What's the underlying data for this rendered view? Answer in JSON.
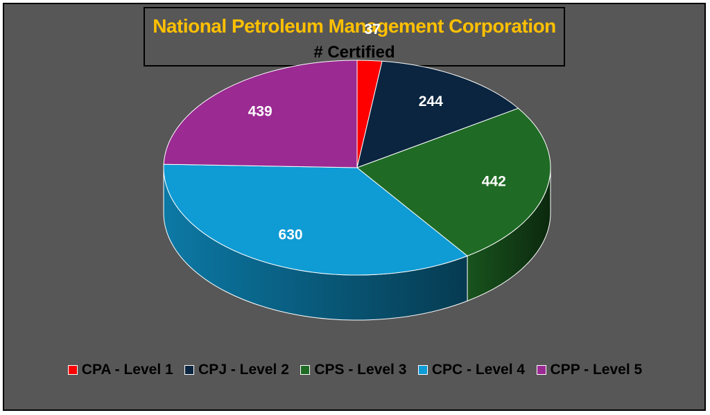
{
  "chart_data": {
    "type": "pie",
    "title": "National Petroleum Management Corporation",
    "subtitle": "# Certified",
    "categories": [
      "CPA - Level 1",
      "CPJ - Level 2",
      "CPS - Level 3",
      "CPC - Level 4",
      "CPP - Level 5"
    ],
    "values": [
      37,
      244,
      442,
      630,
      439
    ],
    "colors": [
      "#ff0000",
      "#0b2540",
      "#1f6b25",
      "#0f9bd4",
      "#9b2a92"
    ],
    "style": "3d-pie",
    "legend": "bottom",
    "data_labels": true
  },
  "theme": {
    "background": "#575757",
    "title_color": "#ffc000",
    "subtitle_color": "#000000",
    "label_color": "#ffffff",
    "legend_text_color": "#000000"
  }
}
